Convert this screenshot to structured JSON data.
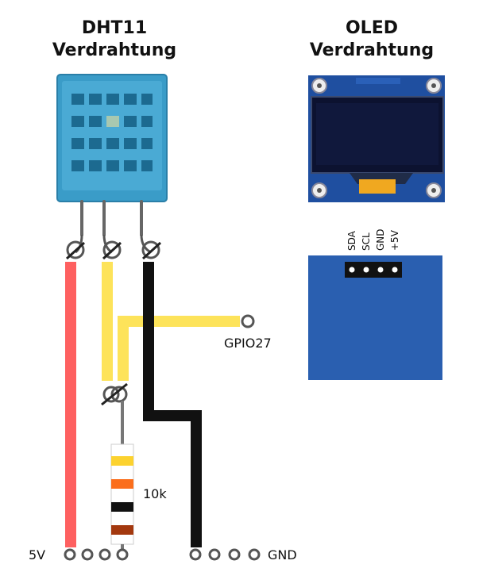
{
  "dht_title": {
    "line1": "DHT11",
    "line2": "Verdrahtung"
  },
  "oled_title": {
    "line1": "OLED",
    "line2": "Verdrahtung"
  },
  "oled_header_pins": [
    "SDA",
    "SCL",
    "GND",
    "+5V"
  ],
  "labels": {
    "gpio": "GPIO27",
    "resistor": "10k",
    "vcc": "5V",
    "gnd": "GND"
  },
  "colors": {
    "wire_red": "#fe6060",
    "wire_yellow": "#fde35a",
    "wire_black": "#111111",
    "sensor_blue": "#3a9cc8",
    "oled_blue": "#2a5fb0"
  }
}
